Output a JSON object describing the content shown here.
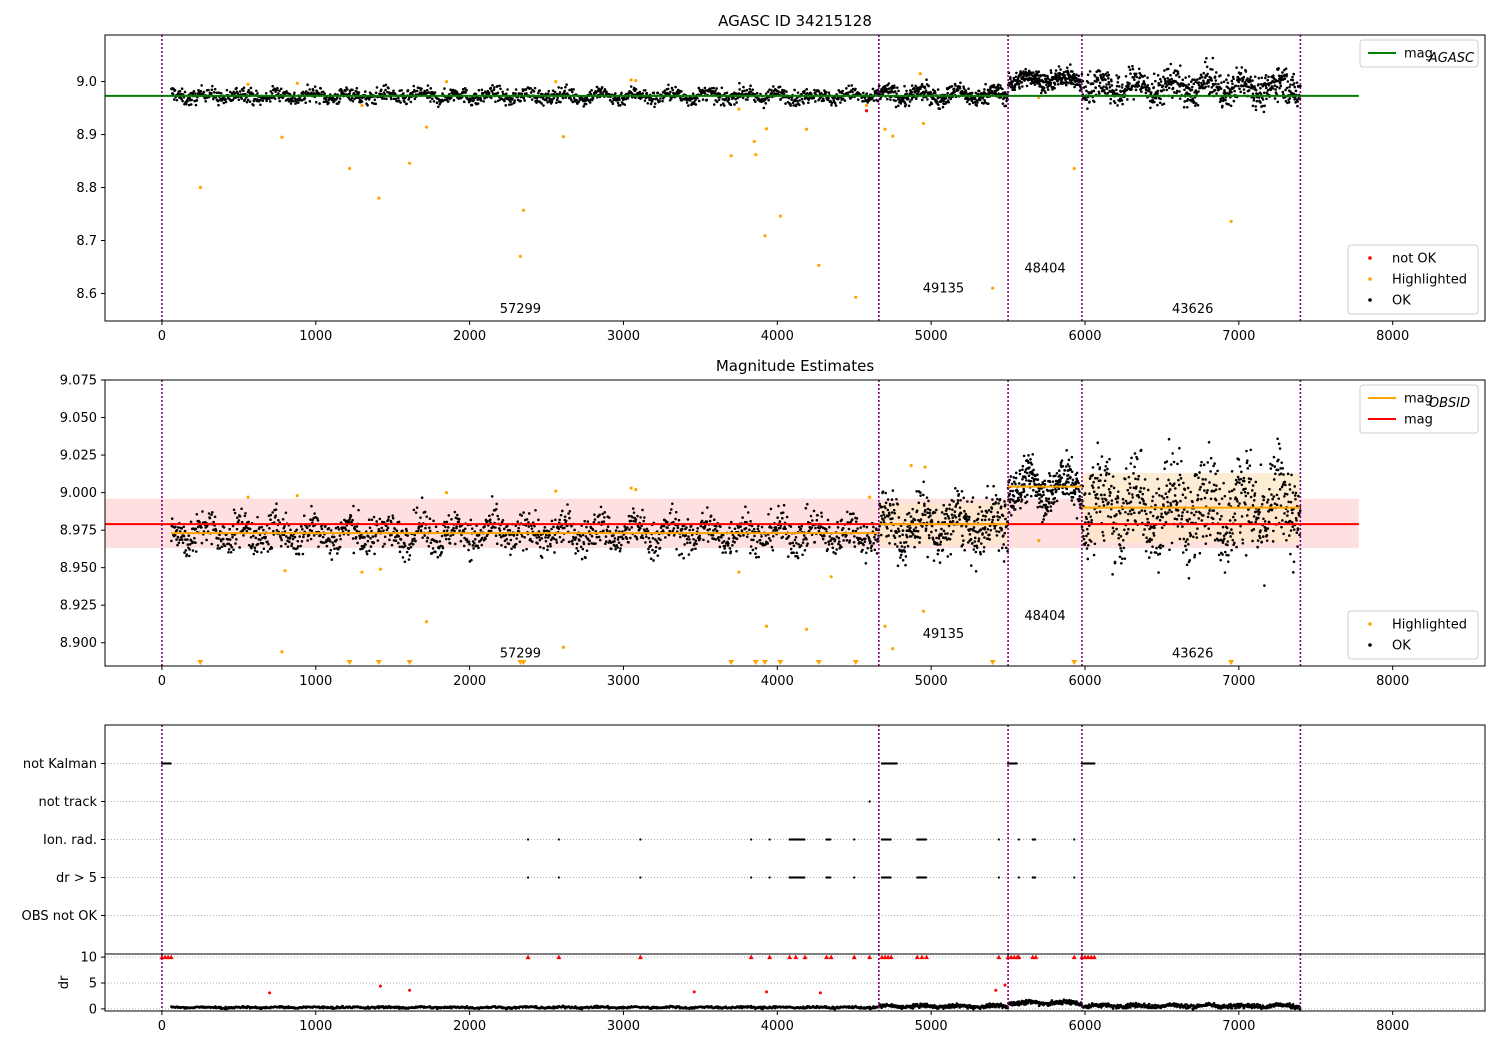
{
  "figure_title": "",
  "colors": {
    "ok": "#000000",
    "highlighted": "#ffa500",
    "not_ok": "#ff0000",
    "mag_agasc": "#008000",
    "mag_obsid": "#ffa500",
    "mag": "#ff0000",
    "obs_boundary": "#800080",
    "band_mag": "#ffd6d6",
    "band_obsid": "#fde7c7"
  },
  "chart_data": [
    {
      "id": "top",
      "type": "scatter",
      "title": "AGASC ID 34215128",
      "xlabel": "",
      "ylabel": "",
      "xlim": [
        -370,
        8600
      ],
      "ylim": [
        8.548,
        9.088
      ],
      "x_ticks": [
        0,
        1000,
        2000,
        3000,
        4000,
        5000,
        6000,
        7000,
        8000
      ],
      "x_tick_labels": [
        "0",
        "1000",
        "2000",
        "3000",
        "4000",
        "5000",
        "6000",
        "7000",
        "8000"
      ],
      "y_ticks": [
        8.6,
        8.7,
        8.8,
        8.9,
        9.0
      ],
      "y_tick_labels": [
        "8.6",
        "8.7",
        "8.8",
        "8.9",
        "9.0"
      ],
      "grid": false,
      "obs_boundaries": [
        0,
        4660,
        5500,
        5980,
        7400
      ],
      "obs_labels": [
        {
          "text": "57299",
          "x": 2330,
          "y": 8.572
        },
        {
          "text": "49135",
          "x": 5080,
          "y": 8.61
        },
        {
          "text": "48404",
          "x": 5740,
          "y": 8.648
        },
        {
          "text": "43626",
          "x": 6700,
          "y": 8.572
        }
      ],
      "hlines": [
        {
          "series": "mag_agasc",
          "y": 8.973,
          "x0": -370,
          "x1": 7780
        }
      ],
      "segments": [
        {
          "x0": 60,
          "x1": 4660,
          "center": 8.973,
          "spread": 0.01,
          "n": 1500
        },
        {
          "x0": 4660,
          "x1": 5500,
          "center": 8.975,
          "spread": 0.012,
          "n": 400
        },
        {
          "x0": 5500,
          "x1": 5980,
          "center": 9.004,
          "spread": 0.012,
          "n": 300
        },
        {
          "x0": 5980,
          "x1": 7400,
          "center": 8.99,
          "spread": 0.022,
          "n": 700
        }
      ],
      "highlighted_points": [
        [
          250,
          8.8
        ],
        [
          780,
          8.895
        ],
        [
          1220,
          8.836
        ],
        [
          1410,
          8.78
        ],
        [
          1610,
          8.846
        ],
        [
          1720,
          8.914
        ],
        [
          2330,
          8.67
        ],
        [
          2350,
          8.757
        ],
        [
          2610,
          8.896
        ],
        [
          3700,
          8.86
        ],
        [
          3850,
          8.887
        ],
        [
          3860,
          8.862
        ],
        [
          3920,
          8.709
        ],
        [
          3930,
          8.911
        ],
        [
          4020,
          8.746
        ],
        [
          4190,
          8.91
        ],
        [
          4270,
          8.653
        ],
        [
          4510,
          8.593
        ],
        [
          4700,
          8.91
        ],
        [
          4750,
          8.897
        ],
        [
          4950,
          8.921
        ],
        [
          5400,
          8.61
        ],
        [
          5930,
          8.836
        ],
        [
          6950,
          8.736
        ],
        [
          560,
          8.995
        ],
        [
          880,
          8.997
        ],
        [
          1300,
          8.955
        ],
        [
          1850,
          9.0
        ],
        [
          2560,
          9.0
        ],
        [
          3050,
          9.003
        ],
        [
          3080,
          9.002
        ],
        [
          3750,
          8.948
        ],
        [
          4580,
          8.955
        ],
        [
          4930,
          9.015
        ],
        [
          5700,
          8.97
        ]
      ],
      "not_ok_points": [
        [
          4580,
          8.945
        ]
      ],
      "legends": [
        {
          "position": "upper-right",
          "entries": [
            {
              "label": "mag",
              "sub": "AGASC",
              "series": "mag_agasc",
              "marker": "line"
            }
          ]
        },
        {
          "position": "lower-right",
          "entries": [
            {
              "label": "not OK",
              "series": "not_ok",
              "marker": "dot"
            },
            {
              "label": "Highlighted",
              "series": "highlighted",
              "marker": "dot"
            },
            {
              "label": "OK",
              "series": "ok",
              "marker": "dot"
            }
          ]
        }
      ]
    },
    {
      "id": "middle",
      "type": "scatter",
      "title": "Magnitude Estimates",
      "xlabel": "",
      "ylabel": "",
      "xlim": [
        -370,
        8600
      ],
      "ylim": [
        8.8845,
        9.075
      ],
      "x_ticks": [
        0,
        1000,
        2000,
        3000,
        4000,
        5000,
        6000,
        7000,
        8000
      ],
      "x_tick_labels": [
        "0",
        "1000",
        "2000",
        "3000",
        "4000",
        "5000",
        "6000",
        "7000",
        "8000"
      ],
      "y_ticks": [
        8.9,
        8.925,
        8.95,
        8.975,
        9.0,
        9.025,
        9.05,
        9.075
      ],
      "y_tick_labels": [
        "8.900",
        "8.925",
        "8.950",
        "8.975",
        "9.000",
        "9.025",
        "9.050",
        "9.075"
      ],
      "grid": false,
      "obs_boundaries": [
        0,
        4660,
        5500,
        5980,
        7400
      ],
      "obs_labels": [
        {
          "text": "57299",
          "x": 2330,
          "y": 8.893
        },
        {
          "text": "49135",
          "x": 5080,
          "y": 8.906
        },
        {
          "text": "48404",
          "x": 5740,
          "y": 8.918
        },
        {
          "text": "43626",
          "x": 6700,
          "y": 8.893
        }
      ],
      "bands": [
        {
          "series": "band_mag",
          "x0": -370,
          "x1": 7780,
          "y0": 8.963,
          "y1": 8.996
        },
        {
          "series": "band_obsid",
          "x0": 4660,
          "x1": 5500,
          "y0": 8.965,
          "y1": 8.993
        },
        {
          "series": "band_obsid",
          "x0": 5980,
          "x1": 7400,
          "y0": 8.967,
          "y1": 9.013
        }
      ],
      "hlines": [
        {
          "series": "mag",
          "y": 8.979,
          "x0": -370,
          "x1": 7780
        },
        {
          "series": "mag_obsid",
          "y": 8.973,
          "x0": 60,
          "x1": 4660
        },
        {
          "series": "mag_obsid",
          "y": 8.979,
          "x0": 4660,
          "x1": 5500
        },
        {
          "series": "mag_obsid",
          "y": 9.004,
          "x0": 5500,
          "x1": 5980
        },
        {
          "series": "mag_obsid",
          "y": 8.99,
          "x0": 5980,
          "x1": 7400
        }
      ],
      "segments": [
        {
          "x0": 60,
          "x1": 4660,
          "center": 8.973,
          "spread": 0.009,
          "n": 1500
        },
        {
          "x0": 4660,
          "x1": 5500,
          "center": 8.978,
          "spread": 0.014,
          "n": 400
        },
        {
          "x0": 5500,
          "x1": 5980,
          "center": 9.004,
          "spread": 0.011,
          "n": 300
        },
        {
          "x0": 5980,
          "x1": 7400,
          "center": 8.99,
          "spread": 0.022,
          "n": 700
        }
      ],
      "highlighted_points": [
        [
          780,
          8.894
        ],
        [
          1720,
          8.914
        ],
        [
          2610,
          8.897
        ],
        [
          3930,
          8.911
        ],
        [
          4190,
          8.909
        ],
        [
          4700,
          8.911
        ],
        [
          4750,
          8.896
        ],
        [
          4950,
          8.921
        ],
        [
          5700,
          8.968
        ],
        [
          560,
          8.997
        ],
        [
          880,
          8.998
        ],
        [
          1300,
          8.947
        ],
        [
          1850,
          9.0
        ],
        [
          2560,
          9.001
        ],
        [
          3050,
          9.003
        ],
        [
          3080,
          9.002
        ],
        [
          3750,
          8.947
        ],
        [
          4350,
          8.944
        ],
        [
          4600,
          8.997
        ],
        [
          4870,
          9.018
        ],
        [
          4960,
          9.017
        ],
        [
          800,
          8.948
        ],
        [
          1420,
          8.949
        ]
      ],
      "below_range_markers": [
        250,
        1220,
        1410,
        1610,
        2330,
        2350,
        3700,
        3860,
        3920,
        4020,
        4270,
        4510,
        5400,
        5930,
        6950
      ],
      "legends": [
        {
          "position": "upper-right",
          "entries": [
            {
              "label": "mag",
              "sub": "OBSID",
              "series": "mag_obsid",
              "marker": "line"
            },
            {
              "label": "mag",
              "sub": "",
              "series": "mag",
              "marker": "line"
            }
          ]
        },
        {
          "position": "lower-right",
          "entries": [
            {
              "label": "Highlighted",
              "series": "highlighted",
              "marker": "dot"
            },
            {
              "label": "OK",
              "series": "ok",
              "marker": "dot"
            }
          ]
        }
      ]
    },
    {
      "id": "flags",
      "type": "scatter",
      "title": "",
      "xlabel": "",
      "ylabel": "",
      "xlim": [
        -370,
        8600
      ],
      "categories": [
        "not Kalman",
        "not track",
        "Ion. rad.",
        "dr > 5",
        "OBS not OK"
      ],
      "grid": true,
      "obs_boundaries": [
        0,
        4660,
        5500,
        5980,
        7400
      ],
      "flag_points": {
        "not Kalman": [
          [
            0,
            60
          ],
          [
            4680,
            4780
          ],
          [
            5500,
            5560
          ],
          [
            5980,
            6060
          ]
        ],
        "not track": [
          [
            4600,
            4600
          ]
        ],
        "Ion. rad.": [
          [
            2380,
            2380
          ],
          [
            2580,
            2580
          ],
          [
            3110,
            3110
          ],
          [
            3830,
            3830
          ],
          [
            3950,
            3950
          ],
          [
            4080,
            4180
          ],
          [
            4320,
            4350
          ],
          [
            4500,
            4500
          ],
          [
            4680,
            4740
          ],
          [
            4910,
            4970
          ],
          [
            5440,
            5440
          ],
          [
            5570,
            5570
          ],
          [
            5660,
            5680
          ],
          [
            5930,
            5930
          ]
        ],
        "dr > 5": [
          [
            2380,
            2380
          ],
          [
            2580,
            2580
          ],
          [
            3110,
            3110
          ],
          [
            3830,
            3830
          ],
          [
            3950,
            3950
          ],
          [
            4080,
            4180
          ],
          [
            4320,
            4350
          ],
          [
            4500,
            4500
          ],
          [
            4680,
            4740
          ],
          [
            4910,
            4970
          ],
          [
            5440,
            5440
          ],
          [
            5570,
            5570
          ],
          [
            5660,
            5680
          ],
          [
            5930,
            5930
          ]
        ],
        "OBS not OK": []
      }
    },
    {
      "id": "dr",
      "type": "scatter",
      "title": "",
      "xlabel": "",
      "ylabel": "dr",
      "xlim": [
        -370,
        8600
      ],
      "ylim": [
        -0.4,
        10.6
      ],
      "x_ticks": [
        0,
        1000,
        2000,
        3000,
        4000,
        5000,
        6000,
        7000,
        8000
      ],
      "x_tick_labels": [
        "0",
        "1000",
        "2000",
        "3000",
        "4000",
        "5000",
        "6000",
        "7000",
        "8000"
      ],
      "y_ticks": [
        0,
        5,
        10
      ],
      "y_tick_labels": [
        "0",
        "5",
        "10"
      ],
      "grid": true,
      "obs_boundaries": [
        0,
        4660,
        5500,
        5980,
        7400
      ],
      "clip_value": 10,
      "segments": [
        {
          "x0": 60,
          "x1": 4660,
          "center": 0.3,
          "spread": 0.15,
          "n": 900
        },
        {
          "x0": 4660,
          "x1": 5500,
          "center": 0.5,
          "spread": 0.25,
          "n": 300
        },
        {
          "x0": 5500,
          "x1": 5980,
          "center": 1.2,
          "spread": 0.3,
          "n": 220
        },
        {
          "x0": 5980,
          "x1": 7400,
          "center": 0.6,
          "spread": 0.3,
          "n": 500
        }
      ],
      "not_ok_points": [
        [
          700,
          3.1
        ],
        [
          1420,
          4.4
        ],
        [
          1610,
          3.6
        ],
        [
          3460,
          3.3
        ],
        [
          3930,
          3.3
        ],
        [
          4280,
          3.1
        ],
        [
          5420,
          3.6
        ],
        [
          5480,
          4.6
        ]
      ],
      "clipped_points": [
        0,
        20,
        40,
        60,
        2380,
        2580,
        3110,
        3830,
        3950,
        4080,
        4120,
        4180,
        4320,
        4350,
        4500,
        4600,
        4680,
        4700,
        4720,
        4740,
        4910,
        4940,
        4970,
        5440,
        5500,
        5520,
        5540,
        5560,
        5570,
        5660,
        5680,
        5930,
        5980,
        6000,
        6020,
        6040,
        6060
      ]
    }
  ]
}
